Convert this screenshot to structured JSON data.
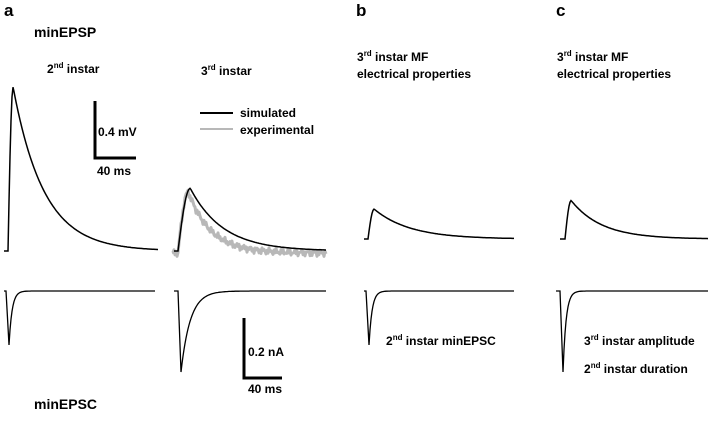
{
  "chart_data": {
    "type": "line",
    "grid": false,
    "legend": "top-right of panel a, 3rd instar trace",
    "panels": [
      {
        "letter": "a",
        "epsp_label": "minEPSP",
        "epsc_label": "minEPSC",
        "left_title": {
          "base": "2",
          "sup": "nd",
          "rest": " instar"
        },
        "right_title": {
          "base": "3",
          "sup": "rd",
          "rest": " instar"
        },
        "legend": [
          {
            "label": "simulated",
            "color": "#000000"
          },
          {
            "label": "experimental",
            "color": "#b8b8b8"
          }
        ],
        "voltage_scale": {
          "amplitude": "0.4 mV",
          "time": "40 ms"
        },
        "current_scale": {
          "amplitude": "0.2 nA",
          "time": "40 ms"
        },
        "traces": {
          "epsp_2nd_instar_mV": {
            "peak": 1.15,
            "rise_ms": 5,
            "decay_tau_ms": 30
          },
          "epsp_3rd_instar_simulated_mV": {
            "peak": 0.44,
            "rise_ms": 12,
            "decay_tau_ms": 32
          },
          "epsp_3rd_instar_experimental_mV": {
            "peak": 0.43,
            "rise_ms": 10,
            "decay_tau_ms": 22,
            "plateau": 0.03
          },
          "epsc_2nd_instar_nA": {
            "peak": -0.18,
            "decay_tau_ms": 3
          },
          "epsc_3rd_instar_nA": {
            "peak": -0.27,
            "decay_tau_ms": 9
          }
        }
      },
      {
        "letter": "b",
        "title": {
          "base": "3",
          "sup": "rd",
          "rest": " instar MF",
          "line2": "electrical properties"
        },
        "epsc_label": {
          "base": "2",
          "sup": "nd",
          "rest": " instar minEPSC"
        },
        "traces": {
          "epsp_mV": {
            "peak": 0.21,
            "rise_ms": 6,
            "decay_tau_ms": 35
          },
          "epsc_nA": {
            "peak": -0.18,
            "decay_tau_ms": 3
          }
        }
      },
      {
        "letter": "c",
        "title": {
          "base": "3",
          "sup": "rd",
          "rest": " instar MF",
          "line2": "electrical properties"
        },
        "epsc_label": {
          "line1": {
            "base": "3",
            "sup": "rd",
            "rest": " instar amplitude"
          },
          "line2": {
            "base": "2",
            "sup": "nd",
            "rest": " instar duration"
          }
        },
        "traces": {
          "epsp_mV": {
            "peak": 0.27,
            "rise_ms": 6,
            "decay_tau_ms": 30
          },
          "epsc_nA": {
            "peak": -0.27,
            "decay_tau_ms": 3
          }
        }
      }
    ]
  }
}
